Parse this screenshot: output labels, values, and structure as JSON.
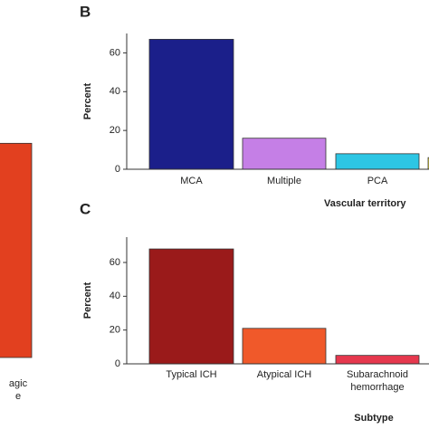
{
  "chart_data": [
    {
      "type": "bar",
      "categories": [
        "agic e"
      ],
      "values": [
        40
      ],
      "colors": [
        "#e2401f"
      ],
      "ylim": [
        0,
        60
      ]
    },
    {
      "type": "bar",
      "panel": "B",
      "ylabel": "Percent",
      "xlabel": "Vascular territory",
      "categories": [
        "MCA",
        "Multiple",
        "PCA",
        null
      ],
      "values": [
        67,
        16,
        8,
        6
      ],
      "colors": [
        "#1b1f8a",
        "#c57fe6",
        "#2dc6e4",
        "#e0d040"
      ],
      "ylim": [
        0,
        70
      ],
      "yticks": [
        0,
        20,
        40,
        60
      ]
    },
    {
      "type": "bar",
      "panel": "C",
      "ylabel": "Percent",
      "xlabel": "Subtype",
      "categories": [
        "Typical ICH",
        "Atypical ICH",
        "Subarachnoid hemorrhage"
      ],
      "values": [
        68,
        21,
        5
      ],
      "colors": [
        "#9a1a1a",
        "#f0592a",
        "#e6384e"
      ],
      "ylim": [
        0,
        75
      ],
      "yticks": [
        0,
        20,
        40,
        60
      ]
    }
  ]
}
